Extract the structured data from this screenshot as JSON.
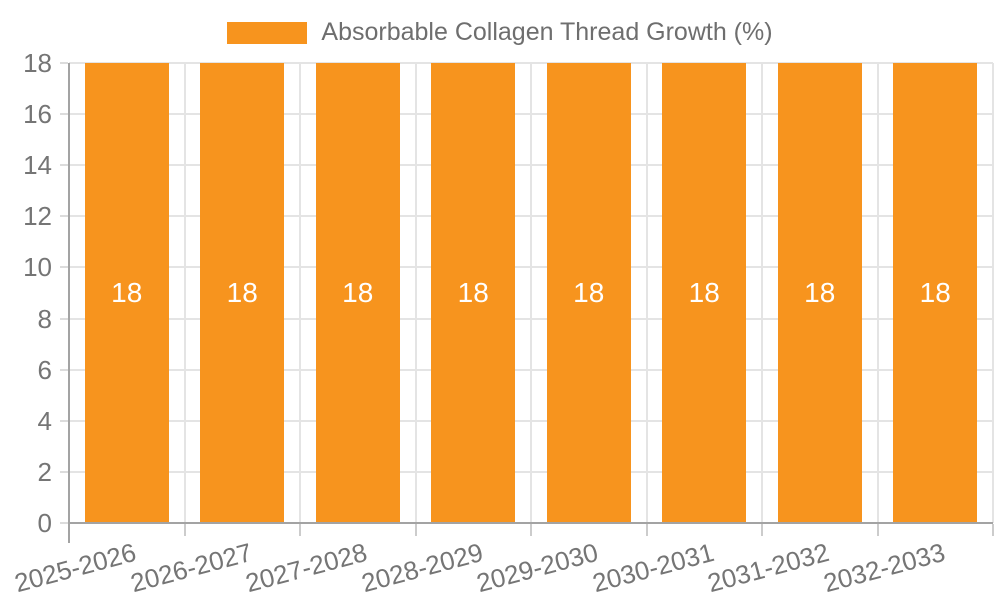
{
  "legend": {
    "label": "Absorbable Collagen Thread Growth (%)"
  },
  "chart_data": {
    "type": "bar",
    "title": "",
    "xlabel": "",
    "ylabel": "",
    "categories": [
      "2025-2026",
      "2026-2027",
      "2027-2028",
      "2028-2029",
      "2029-2030",
      "2030-2031",
      "2031-2032",
      "2032-2033"
    ],
    "series": [
      {
        "name": "Absorbable Collagen Thread Growth (%)",
        "values": [
          18,
          18,
          18,
          18,
          18,
          18,
          18,
          18
        ]
      }
    ],
    "value_labels": [
      "18",
      "18",
      "18",
      "18",
      "18",
      "18",
      "18",
      "18"
    ],
    "ylim": [
      0,
      18
    ],
    "yticks": [
      0,
      2,
      4,
      6,
      8,
      10,
      12,
      14,
      16,
      18
    ],
    "grid": true,
    "legend_position": "top-center",
    "colors": {
      "bar": "#F7941E",
      "grid": "#E4E4E4",
      "axis": "#A3A3A3",
      "ytick_mark": "#DCDCDC",
      "xtick_mark": "#CCCCCC",
      "tick_label": "#757575",
      "legend_text": "#6E6E6E",
      "value_label": "#FFFFFF",
      "background": "#FFFFFF"
    }
  }
}
